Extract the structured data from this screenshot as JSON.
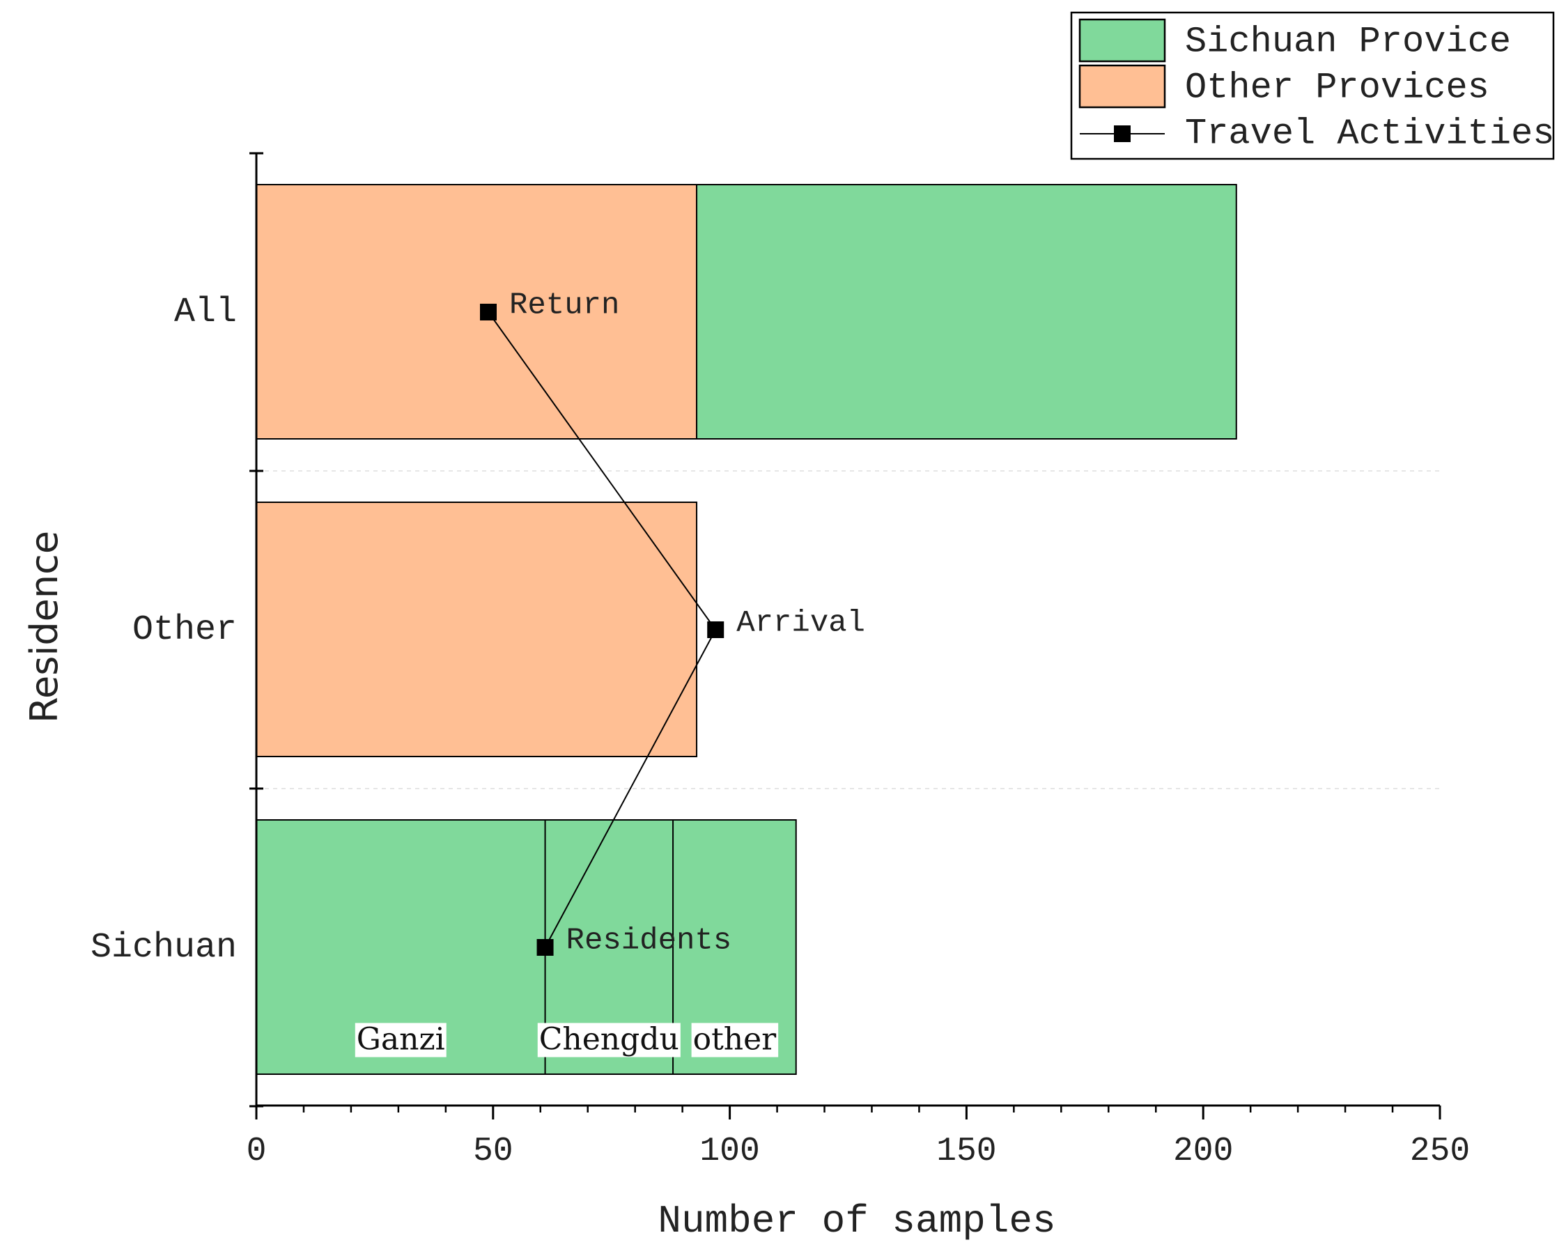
{
  "chart_data": {
    "type": "bar",
    "orientation": "horizontal",
    "stacked": true,
    "xlabel": "Number of samples",
    "ylabel": "Residence",
    "xlim": [
      0,
      250
    ],
    "xticks": [
      0,
      50,
      100,
      150,
      200,
      250
    ],
    "xtick_labels": [
      "0",
      "50",
      "100",
      "150",
      "200",
      "250"
    ],
    "categories": [
      "All",
      "Other",
      "Sichuan"
    ],
    "series": [
      {
        "name": "Other Provices",
        "color": "#FFBF94",
        "values": [
          93,
          93,
          0
        ]
      },
      {
        "name": "Sichuan Provice",
        "color": "#80D99B",
        "values": [
          114,
          0,
          114
        ]
      }
    ],
    "segments": [
      {
        "category": "Sichuan",
        "label": "Ganzi",
        "start": 0,
        "end": 61
      },
      {
        "category": "Sichuan",
        "label": "Chengdu",
        "start": 61,
        "end": 88
      },
      {
        "category": "Sichuan",
        "label": "other",
        "start": 88,
        "end": 114
      }
    ],
    "line_series": {
      "name": "Travel Activities",
      "color": "#000000",
      "points": [
        {
          "category": "All",
          "x": 49,
          "label": "Return"
        },
        {
          "category": "Other",
          "x": 97,
          "label": "Arrival"
        },
        {
          "category": "Sichuan",
          "x": 61,
          "label": "Residents"
        }
      ]
    },
    "legend": {
      "position": "top-right",
      "entries": [
        {
          "label": "Sichuan Provice",
          "kind": "patch",
          "color": "#80D99B"
        },
        {
          "label": "Other Provices",
          "kind": "patch",
          "color": "#FFBF94"
        },
        {
          "label": "Travel Activities",
          "kind": "line-marker",
          "color": "#000000"
        }
      ]
    }
  }
}
